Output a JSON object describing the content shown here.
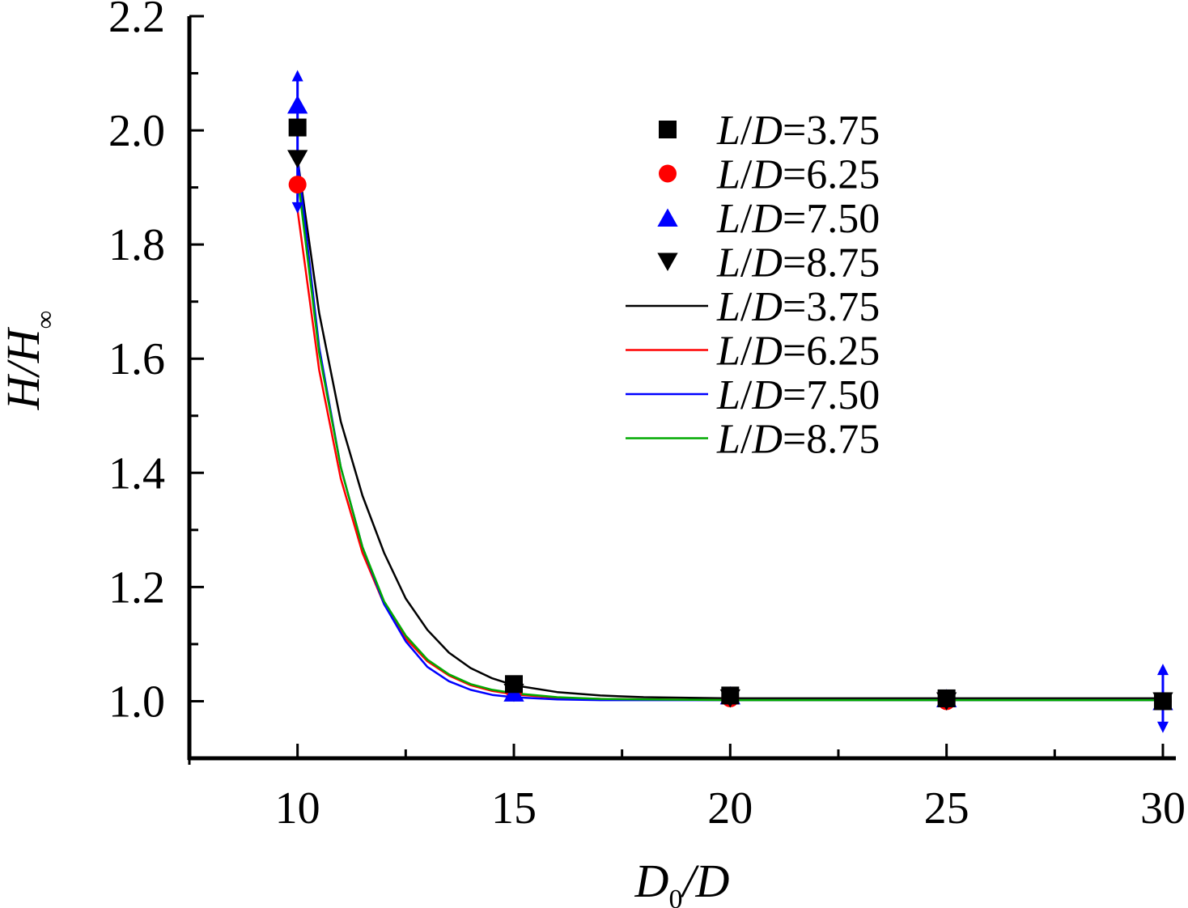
{
  "chart_data": {
    "type": "scatter",
    "xlabel": {
      "main": "D",
      "sub": "0",
      "tail": "/D"
    },
    "ylabel": {
      "main": "H/H",
      "sub": "∞"
    },
    "xlim": [
      7.5,
      30.3
    ],
    "ylim": [
      0.9,
      2.2
    ],
    "xticks": [
      10,
      15,
      20,
      25,
      30
    ],
    "xtick_labels": [
      "10",
      "15",
      "20",
      "25",
      "30"
    ],
    "xminor": [
      12.5,
      17.5,
      22.5,
      27.5
    ],
    "yticks": [
      1.0,
      1.2,
      1.4,
      1.6,
      1.8,
      2.0,
      2.2
    ],
    "ytick_labels": [
      "1.0",
      "1.2",
      "1.4",
      "1.6",
      "1.8",
      "2.0",
      "2.2"
    ],
    "yminor": [
      1.1,
      1.3,
      1.5,
      1.7,
      1.9,
      2.1
    ],
    "legend_position": "top-right",
    "scatter_series": [
      {
        "name": "L/D=3.75",
        "marker": "square",
        "color": "#000000",
        "x": [
          10,
          15,
          20,
          25,
          30
        ],
        "y": [
          2.005,
          1.03,
          1.01,
          1.005,
          1.0
        ]
      },
      {
        "name": "L/D=6.25",
        "marker": "circle",
        "color": "#ff0000",
        "x": [
          10,
          15,
          20,
          25,
          30
        ],
        "y": [
          1.905,
          1.02,
          1.005,
          1.0,
          1.0
        ]
      },
      {
        "name": "L/D=7.50",
        "marker": "triangle-up",
        "color": "#0000ff",
        "x": [
          10,
          15,
          20,
          25,
          30
        ],
        "y": [
          2.045,
          1.015,
          1.01,
          1.005,
          1.0
        ]
      },
      {
        "name": "L/D=8.75",
        "marker": "triangle-down",
        "color": "#000000",
        "x": [
          10,
          15,
          20,
          25,
          30
        ],
        "y": [
          1.95,
          1.015,
          1.005,
          1.0,
          1.0
        ]
      }
    ],
    "error_bars": [
      {
        "x": 10,
        "low": 1.86,
        "high": 2.1,
        "color": "#0000ff"
      },
      {
        "x": 30,
        "low": 0.95,
        "high": 1.06,
        "color": "#0000ff"
      }
    ],
    "fit_series": [
      {
        "name": "L/D=3.75",
        "color": "#000000",
        "x": [
          10.0,
          10.5,
          11.0,
          11.5,
          12.0,
          12.5,
          13.0,
          13.5,
          14.0,
          14.5,
          15.0,
          16.0,
          17.0,
          18.0,
          20.0,
          25.0,
          30.0
        ],
        "y": [
          1.95,
          1.68,
          1.49,
          1.36,
          1.26,
          1.18,
          1.125,
          1.085,
          1.058,
          1.04,
          1.028,
          1.016,
          1.01,
          1.007,
          1.005,
          1.005,
          1.005
        ]
      },
      {
        "name": "L/D=6.25",
        "color": "#ff0000",
        "x": [
          10.0,
          10.5,
          11.0,
          11.5,
          12.0,
          12.5,
          13.0,
          13.5,
          14.0,
          14.5,
          15.0,
          16.0,
          17.0,
          18.0,
          20.0,
          25.0,
          30.0
        ],
        "y": [
          1.86,
          1.58,
          1.39,
          1.26,
          1.17,
          1.11,
          1.07,
          1.045,
          1.028,
          1.018,
          1.012,
          1.006,
          1.004,
          1.003,
          1.002,
          1.002,
          1.002
        ]
      },
      {
        "name": "L/D=7.50",
        "color": "#0000ff",
        "x": [
          10.0,
          10.5,
          11.0,
          11.5,
          12.0,
          12.5,
          13.0,
          13.5,
          14.0,
          14.5,
          15.0,
          16.0,
          17.0,
          18.0,
          20.0,
          25.0,
          30.0
        ],
        "y": [
          1.95,
          1.62,
          1.41,
          1.27,
          1.17,
          1.105,
          1.06,
          1.035,
          1.02,
          1.011,
          1.007,
          1.003,
          1.002,
          1.002,
          1.002,
          1.002,
          1.002
        ]
      },
      {
        "name": "L/D=8.75",
        "color": "#00aa00",
        "x": [
          10.0,
          10.5,
          11.0,
          11.5,
          12.0,
          12.5,
          13.0,
          13.5,
          14.0,
          14.5,
          15.0,
          16.0,
          17.0,
          18.0,
          20.0,
          25.0,
          30.0
        ],
        "y": [
          1.92,
          1.61,
          1.41,
          1.27,
          1.175,
          1.115,
          1.073,
          1.047,
          1.03,
          1.02,
          1.014,
          1.007,
          1.004,
          1.003,
          1.002,
          1.002,
          1.002
        ]
      }
    ],
    "legend": [
      {
        "label": "L/D=3.75",
        "kind": "marker",
        "marker": "square",
        "color": "#000000"
      },
      {
        "label": "L/D=6.25",
        "kind": "marker",
        "marker": "circle",
        "color": "#ff0000"
      },
      {
        "label": "L/D=7.50",
        "kind": "marker",
        "marker": "triangle-up",
        "color": "#0000ff"
      },
      {
        "label": "L/D=8.75",
        "kind": "marker",
        "marker": "triangle-down",
        "color": "#000000"
      },
      {
        "label": "L/D=3.75",
        "kind": "line",
        "color": "#000000"
      },
      {
        "label": "L/D=6.25",
        "kind": "line",
        "color": "#ff0000"
      },
      {
        "label": "L/D=7.50",
        "kind": "line",
        "color": "#0000ff"
      },
      {
        "label": "L/D=8.75",
        "kind": "line",
        "color": "#00aa00"
      }
    ]
  }
}
